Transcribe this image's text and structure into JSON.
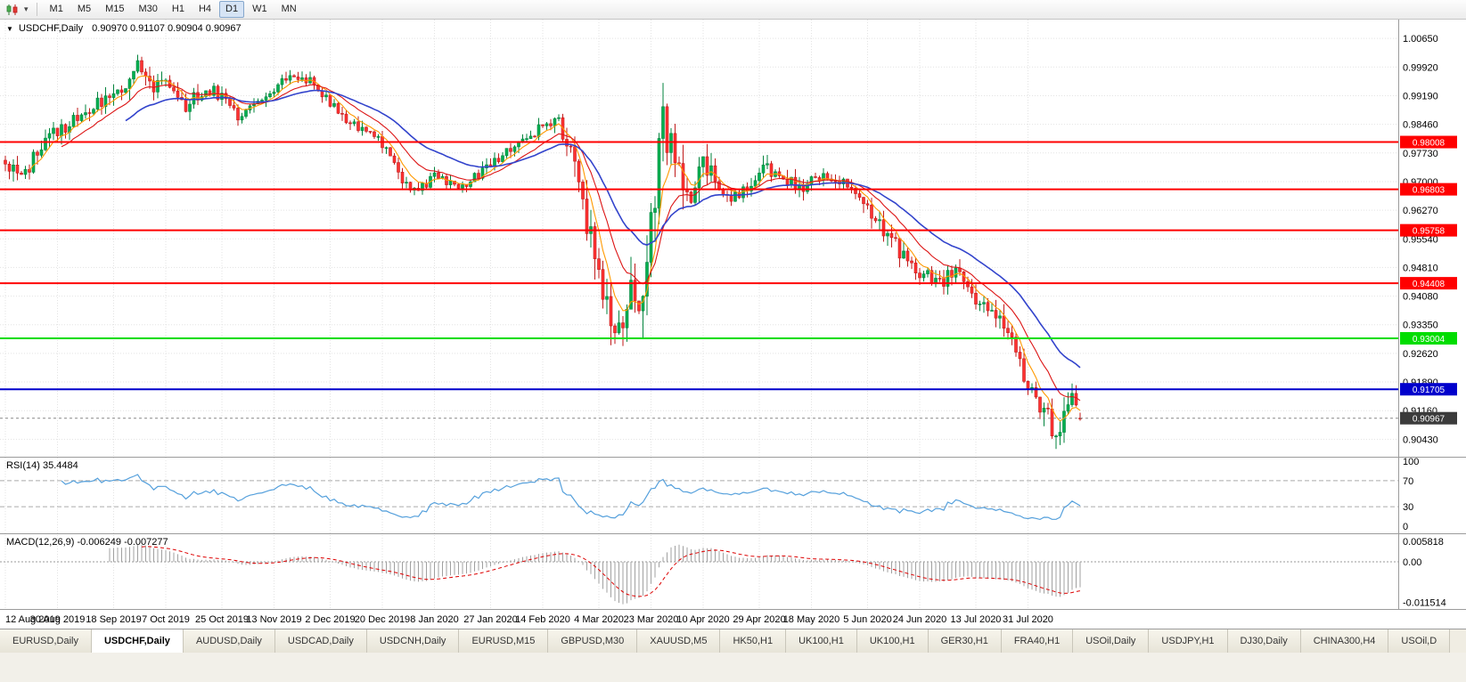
{
  "toolbar": {
    "timeframes": [
      "M1",
      "M5",
      "M15",
      "M30",
      "H1",
      "H4",
      "D1",
      "W1",
      "MN"
    ],
    "active_timeframe": "D1"
  },
  "chart": {
    "title": "USDCHF,Daily",
    "ohlc_text": "0.90970 0.91107 0.90904 0.90967",
    "y_axis_labels": [
      "1.00650",
      "0.99920",
      "0.99190",
      "0.98460",
      "0.97730",
      "0.97000",
      "0.96270",
      "0.95540",
      "0.94810",
      "0.94080",
      "0.93350",
      "0.92620",
      "0.91890",
      "0.91160",
      "0.90430"
    ],
    "hlines": [
      {
        "price": "0.98008",
        "value": 0.98008,
        "color_key": "hline_red"
      },
      {
        "price": "0.96803",
        "value": 0.96803,
        "color_key": "hline_red"
      },
      {
        "price": "0.95758",
        "value": 0.95758,
        "color_key": "hline_red"
      },
      {
        "price": "0.94408",
        "value": 0.94408,
        "color_key": "hline_red"
      },
      {
        "price": "0.93004",
        "value": 0.93004,
        "color_key": "hline_green"
      },
      {
        "price": "0.91705",
        "value": 0.91705,
        "color_key": "hline_blue"
      }
    ],
    "current_price": {
      "label": "0.90967",
      "value": 0.90967
    }
  },
  "rsi": {
    "label": "RSI(14) 35.4484",
    "period": 14,
    "value": 35.4484,
    "axis_labels": [
      "100",
      "70",
      "30",
      "0"
    ],
    "axis_values": [
      100,
      70,
      30,
      0
    ],
    "level_lines": [
      70,
      30
    ]
  },
  "macd": {
    "label": "MACD(12,26,9) -0.006249 -0.007277",
    "fast": 12,
    "slow": 26,
    "signal": 9,
    "value": -0.006249,
    "signal_value": -0.007277,
    "axis_labels": [
      "0.005818",
      "0.00",
      "-0.011514"
    ],
    "axis_values": [
      0.005818,
      0,
      -0.011514
    ]
  },
  "tabs": {
    "active_index": 1,
    "items": [
      "EURUSD,Daily",
      "USDCHF,Daily",
      "AUDUSD,Daily",
      "USDCAD,Daily",
      "USDCNH,Daily",
      "EURUSD,M15",
      "GBPUSD,M30",
      "XAUUSD,M5",
      "HK50,H1",
      "UK100,H1",
      "UK100,H1",
      "GER30,H1",
      "FRA40,H1",
      "USOil,Daily",
      "USDJPY,H1",
      "DJ30,Daily",
      "CHINA300,H4",
      "USOil,D"
    ]
  },
  "colors": {
    "up": "#00B050",
    "up_stroke": "#00833C",
    "down": "#FF3232",
    "down_stroke": "#C01A1A",
    "ma_fast": "#FF9900",
    "ma_mid": "#DC1414",
    "ma_slow": "#3344CC",
    "hline_red": "#FF0000",
    "hline_green": "#00DD00",
    "hline_blue": "#0000CC",
    "rsi_line": "#55A0DC",
    "rsi_level": "#ABABAB",
    "macd_hist": "#A0A0A0",
    "macd_signal": "#DD0000",
    "grid": "#E3E3E3",
    "panel_border": "#9B9B9B",
    "current_box": "#3B3B3B",
    "axis_text": "#000000"
  },
  "chart_data": {
    "type": "candlestick",
    "symbol": "USDCHF",
    "timeframe": "Daily",
    "bars": 269,
    "ohlc_last": {
      "open": 0.9097,
      "high": 0.91107,
      "low": 0.90904,
      "close": 0.90967
    },
    "y_range": [
      0.9,
      1.0113
    ],
    "x_dates": [
      "12 Aug 2019",
      "30 Aug 2019",
      "18 Sep 2019",
      "7 Oct 2019",
      "25 Oct 2019",
      "13 Nov 2019",
      "2 Dec 2019",
      "20 Dec 2019",
      "8 Jan 2020",
      "27 Jan 2020",
      "14 Feb 2020",
      "4 Mar 2020",
      "23 Mar 2020",
      "10 Apr 2020",
      "29 Apr 2020",
      "18 May 2020",
      "5 Jun 2020",
      "24 Jun 2020",
      "13 Jul 2020",
      "31 Jul 2020"
    ],
    "price_anchors": [
      [
        0,
        0.9745,
        0.004
      ],
      [
        4,
        0.97,
        0.005
      ],
      [
        8,
        0.9775,
        0.004
      ],
      [
        13,
        0.983,
        0.004
      ],
      [
        20,
        0.9872,
        0.004
      ],
      [
        27,
        0.9925,
        0.005
      ],
      [
        33,
        0.9992,
        0.005
      ],
      [
        37,
        0.9945,
        0.004
      ],
      [
        40,
        0.9968,
        0.004
      ],
      [
        45,
        0.989,
        0.004
      ],
      [
        50,
        0.9938,
        0.004
      ],
      [
        54,
        0.9918,
        0.003
      ],
      [
        58,
        0.9868,
        0.003
      ],
      [
        63,
        0.9902,
        0.003
      ],
      [
        67,
        0.9938,
        0.003
      ],
      [
        72,
        0.9978,
        0.003
      ],
      [
        76,
        0.9952,
        0.003
      ],
      [
        81,
        0.9905,
        0.003
      ],
      [
        85,
        0.9858,
        0.003
      ],
      [
        90,
        0.9832,
        0.003
      ],
      [
        94,
        0.9792,
        0.003
      ],
      [
        99,
        0.9705,
        0.003
      ],
      [
        103,
        0.9678,
        0.003
      ],
      [
        107,
        0.9718,
        0.003
      ],
      [
        112,
        0.9682,
        0.003
      ],
      [
        116,
        0.9702,
        0.003
      ],
      [
        121,
        0.9738,
        0.003
      ],
      [
        125,
        0.9772,
        0.003
      ],
      [
        129,
        0.9802,
        0.003
      ],
      [
        134,
        0.9842,
        0.003
      ],
      [
        138,
        0.9852,
        0.004
      ],
      [
        141,
        0.9762,
        0.006
      ],
      [
        144,
        0.9642,
        0.008
      ],
      [
        147,
        0.9502,
        0.01
      ],
      [
        150,
        0.9402,
        0.011
      ],
      [
        153,
        0.9332,
        0.012
      ],
      [
        156,
        0.9422,
        0.012
      ],
      [
        158,
        0.9362,
        0.013
      ],
      [
        161,
        0.9602,
        0.014
      ],
      [
        164,
        0.9842,
        0.012
      ],
      [
        167,
        0.9762,
        0.01
      ],
      [
        170,
        0.9652,
        0.008
      ],
      [
        174,
        0.9748,
        0.006
      ],
      [
        178,
        0.9702,
        0.005
      ],
      [
        181,
        0.9658,
        0.005
      ],
      [
        186,
        0.9692,
        0.004
      ],
      [
        190,
        0.9736,
        0.004
      ],
      [
        194,
        0.9702,
        0.004
      ],
      [
        199,
        0.9682,
        0.004
      ],
      [
        201,
        0.9722,
        0.004
      ],
      [
        205,
        0.9712,
        0.003
      ],
      [
        208,
        0.9706,
        0.003
      ],
      [
        213,
        0.9662,
        0.004
      ],
      [
        217,
        0.9612,
        0.005
      ],
      [
        221,
        0.9548,
        0.005
      ],
      [
        225,
        0.9502,
        0.004
      ],
      [
        228,
        0.9472,
        0.004
      ],
      [
        233,
        0.9442,
        0.004
      ],
      [
        237,
        0.9472,
        0.004
      ],
      [
        241,
        0.9412,
        0.004
      ],
      [
        245,
        0.9382,
        0.004
      ],
      [
        249,
        0.9332,
        0.005
      ],
      [
        253,
        0.9232,
        0.005
      ],
      [
        257,
        0.9152,
        0.006
      ],
      [
        260,
        0.9102,
        0.006
      ],
      [
        262,
        0.9042,
        0.006
      ],
      [
        264,
        0.9122,
        0.006
      ],
      [
        266,
        0.9172,
        0.005
      ],
      [
        268,
        0.9097,
        0.004
      ]
    ],
    "moving_averages": [
      {
        "name": "fast",
        "period": 6,
        "color_key": "ma_fast"
      },
      {
        "name": "mid",
        "period": 14,
        "color_key": "ma_mid"
      },
      {
        "name": "slow",
        "period": 30,
        "color_key": "ma_slow"
      }
    ]
  }
}
